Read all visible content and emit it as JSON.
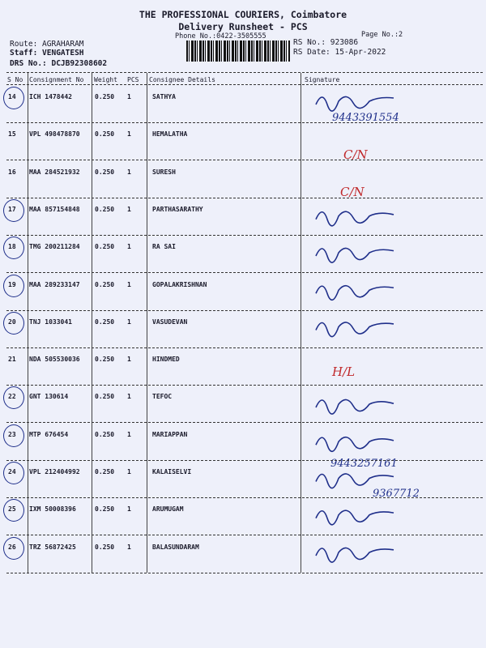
{
  "header": {
    "company": "THE PROFESSIONAL COURIERS, Coimbatore",
    "subtitle": "Delivery Runsheet - PCS",
    "phone": "Phone No.:0422-3505555",
    "page_no": "Page No.:2",
    "route": "Route: AGRAHARAM",
    "staff": "Staff: VENGATESH",
    "drs_no": "DRS No.: DCJB92308602",
    "rs_no": "RS No.: 923086",
    "rs_date": "RS Date: 15-Apr-2022"
  },
  "columns": [
    "S No",
    "Consignment No",
    "Weight",
    "PCS",
    "Consignee Details",
    "Signature"
  ],
  "rows": [
    {
      "sno": "14",
      "consignment": "ICH 1478442",
      "weight": "0.250",
      "pcs": "1",
      "consignee": "SATHYA",
      "note": "9443391554"
    },
    {
      "sno": "15",
      "consignment": "VPL 498478870",
      "weight": "0.250",
      "pcs": "1",
      "consignee": "HEMALATHA",
      "note": "C/N"
    },
    {
      "sno": "16",
      "consignment": "MAA 284521932",
      "weight": "0.250",
      "pcs": "1",
      "consignee": "SURESH",
      "note": "C/N"
    },
    {
      "sno": "17",
      "consignment": "MAA 857154848",
      "weight": "0.250",
      "pcs": "1",
      "consignee": "PARTHASARATHY",
      "note": ""
    },
    {
      "sno": "18",
      "consignment": "TMG 200211284",
      "weight": "0.250",
      "pcs": "1",
      "consignee": "RA SAI",
      "note": ""
    },
    {
      "sno": "19",
      "consignment": "MAA 289233147",
      "weight": "0.250",
      "pcs": "1",
      "consignee": "GOPALAKRISHNAN",
      "note": ""
    },
    {
      "sno": "20",
      "consignment": "TNJ 1033041",
      "weight": "0.250",
      "pcs": "1",
      "consignee": "VASUDEVAN",
      "note": ""
    },
    {
      "sno": "21",
      "consignment": "NDA 505530036",
      "weight": "0.250",
      "pcs": "1",
      "consignee": "HINDMED",
      "note": "H/L"
    },
    {
      "sno": "22",
      "consignment": "GNT 130614",
      "weight": "0.250",
      "pcs": "1",
      "consignee": "TEFOC",
      "note": ""
    },
    {
      "sno": "23",
      "consignment": "MTP 676454",
      "weight": "0.250",
      "pcs": "1",
      "consignee": "MARIAPPAN",
      "note": "9443257161"
    },
    {
      "sno": "24",
      "consignment": "VPL 212404992",
      "weight": "0.250",
      "pcs": "1",
      "consignee": "KALAISELVI",
      "note": "9367712"
    },
    {
      "sno": "25",
      "consignment": "IXM 50008396",
      "weight": "0.250",
      "pcs": "1",
      "consignee": "ARUMUGAM",
      "note": ""
    },
    {
      "sno": "26",
      "consignment": "TRZ 56872425",
      "weight": "0.250",
      "pcs": "1",
      "consignee": "BALASUNDARAM",
      "note": ""
    }
  ]
}
